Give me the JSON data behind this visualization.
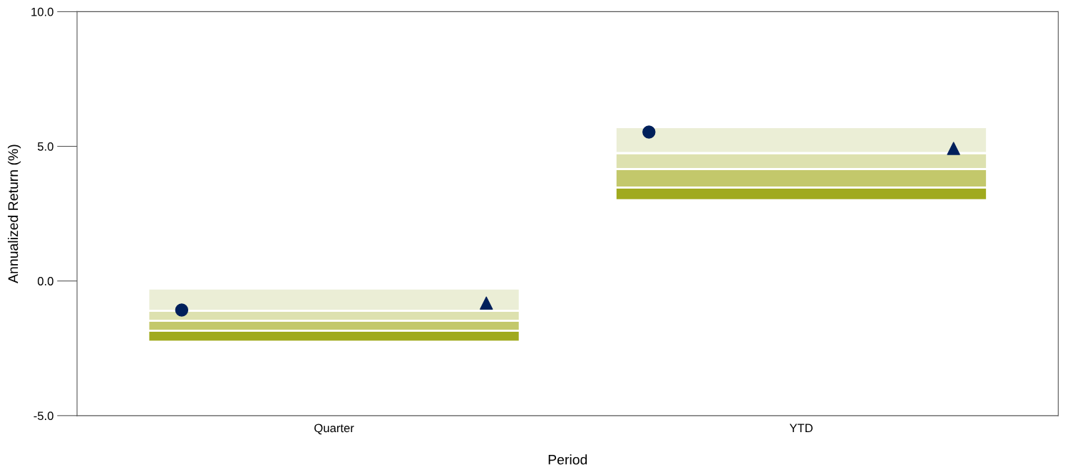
{
  "chart_data": {
    "type": "bar",
    "xlabel": "Period",
    "ylabel": "Annualized Return (%)",
    "categories": [
      "Quarter",
      "YTD"
    ],
    "ylim": [
      -5,
      10
    ],
    "yticks": [
      {
        "value": -5,
        "label": "-5.0"
      },
      {
        "value": 0,
        "label": "0.0"
      },
      {
        "value": 5,
        "label": "5.0"
      },
      {
        "value": 10,
        "label": "10.0"
      }
    ],
    "grid": false,
    "legend": false,
    "series": [
      {
        "color": "#a0aa1e",
        "base": [
          -2.25,
          3.0
        ],
        "values": [
          0.4,
          0.47
        ]
      },
      {
        "color": "#c3c86b",
        "base": [
          -1.85,
          3.47
        ],
        "values": [
          0.37,
          0.69
        ]
      },
      {
        "color": "#dde1af",
        "base": [
          -1.48,
          4.16
        ],
        "values": [
          0.37,
          0.59
        ]
      },
      {
        "color": "#ebeed6",
        "base": [
          -1.11,
          4.75
        ],
        "values": [
          0.83,
          0.96
        ]
      },
      {
        "type": "scatter",
        "marker": "circle",
        "color": "#00205b",
        "x": [
          "Quarter",
          "YTD"
        ],
        "values": [
          -1.08,
          5.53
        ]
      },
      {
        "type": "scatter",
        "marker": "triangle",
        "color": "#00205b",
        "x": [
          "Quarter",
          "YTD"
        ],
        "values": [
          -0.82,
          4.92
        ]
      }
    ]
  }
}
